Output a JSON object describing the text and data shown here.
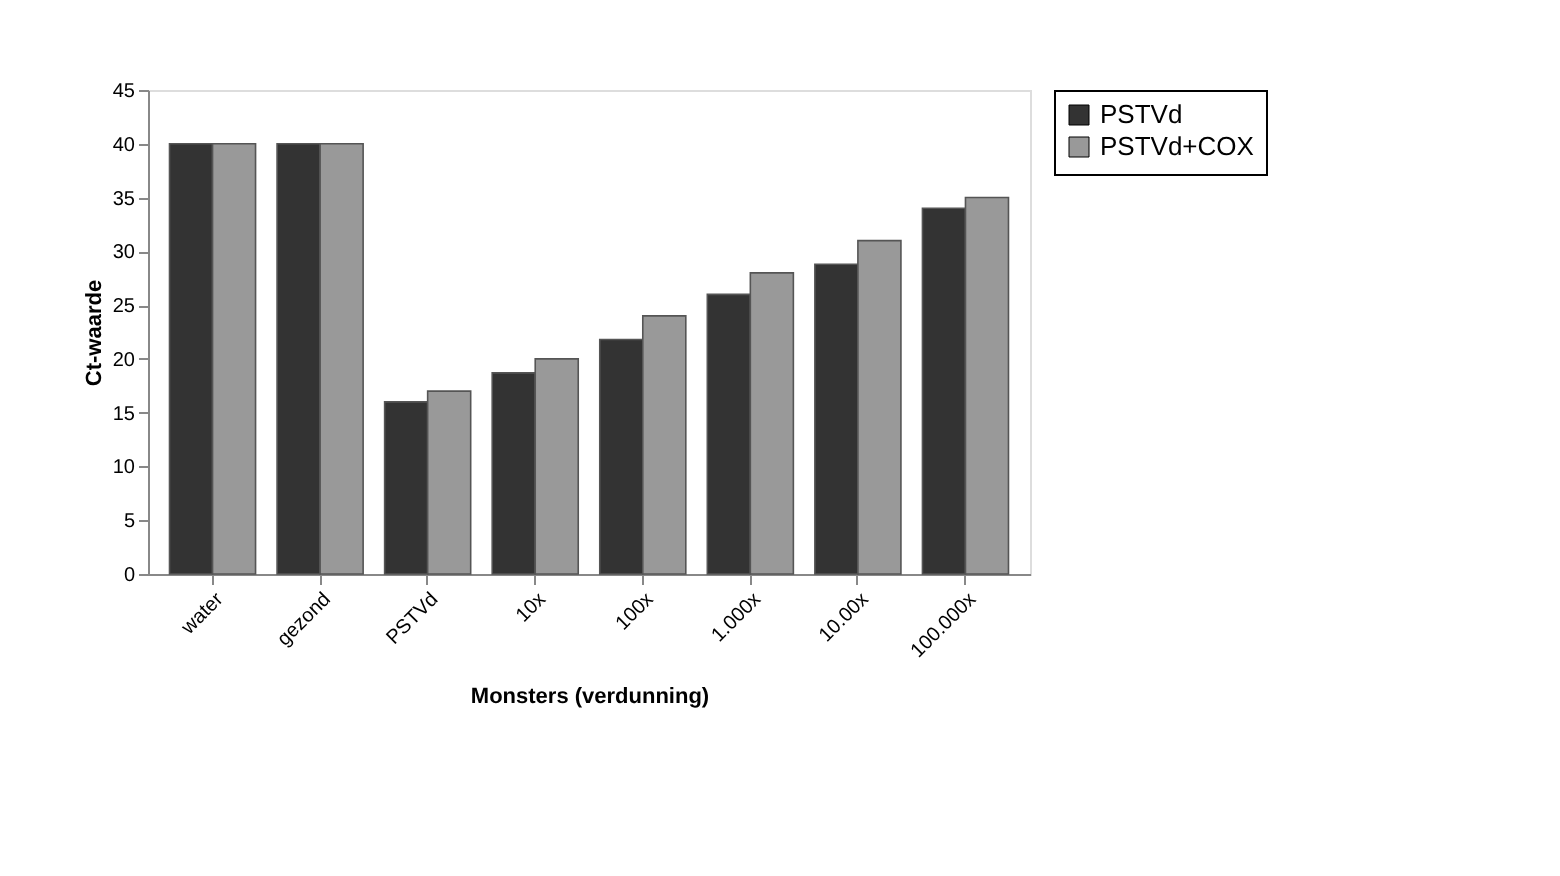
{
  "chart_data": {
    "type": "bar",
    "xlabel": "Monsters (verdunning)",
    "ylabel": "Ct-waarde",
    "categories": [
      "water",
      "gezond",
      "PSTVd",
      "10x",
      "100x",
      "1.000x",
      "10.00x",
      "100.000x"
    ],
    "series": [
      {
        "name": "PSTVd",
        "color": "#333333",
        "values": [
          40,
          40,
          16,
          18.7,
          21.8,
          26,
          28.8,
          34
        ]
      },
      {
        "name": "PSTVd+COX",
        "color": "#999999",
        "values": [
          40,
          40,
          17,
          20,
          24,
          28,
          31,
          35
        ]
      }
    ],
    "ylim": [
      0,
      45
    ],
    "yticks": [
      0,
      5,
      10,
      15,
      20,
      25,
      30,
      35,
      40,
      45
    ],
    "grid": false,
    "legend": "right"
  }
}
